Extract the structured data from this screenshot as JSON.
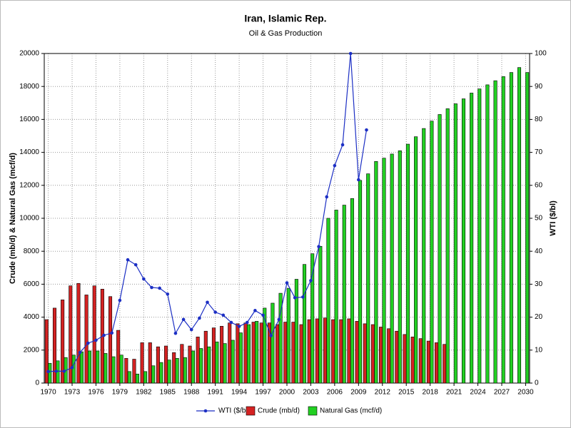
{
  "chart_data": {
    "type": "bar",
    "title": "Iran, Islamic Rep.",
    "subtitle": "Oil & Gas Production",
    "y_label": "Crude (mb/d) & Natural Gas (mcf/d)",
    "y2_label": "WTI ($/bl)",
    "categories": [
      "1970",
      null,
      null,
      "1973",
      null,
      null,
      "1976",
      null,
      null,
      "1979",
      null,
      null,
      "1982",
      null,
      null,
      "1985",
      null,
      null,
      "1988",
      null,
      null,
      "1991",
      null,
      null,
      "1994",
      null,
      null,
      "1997",
      null,
      null,
      "2000",
      null,
      null,
      "2003",
      null,
      null,
      "2006",
      null,
      null,
      "2009",
      null,
      null,
      "2012",
      null,
      null,
      "2015",
      null,
      null,
      "2018",
      null,
      null,
      "2021",
      null,
      null,
      "2024",
      null,
      null,
      "2027",
      null,
      null,
      "2030"
    ],
    "ylim": [
      0,
      20000
    ],
    "yticks": [
      0,
      2000,
      4000,
      6000,
      8000,
      10000,
      12000,
      14000,
      16000,
      18000,
      20000
    ],
    "y2lim": [
      0,
      100
    ],
    "y2ticks": [
      0,
      10,
      20,
      30,
      40,
      50,
      60,
      70,
      80,
      90,
      100
    ],
    "grid": true,
    "legend": "bottom",
    "series": [
      {
        "name": "WTI ($/bl)",
        "type": "line",
        "axis": "y2",
        "color": "#1c2fc4",
        "values": [
          3.5,
          3.6,
          3.6,
          4.7,
          9.3,
          12.1,
          13,
          14.5,
          15.2,
          25.1,
          37.4,
          35.9,
          31.6,
          29,
          28.8,
          27,
          15.1,
          19.3,
          16.2,
          19.7,
          24.5,
          21.5,
          20.6,
          18.4,
          17.2,
          18.4,
          22,
          20.6,
          14.4,
          19.3,
          30.4,
          25.9,
          26.1,
          31.1,
          41.4,
          56.5,
          66,
          72.3,
          100,
          61.7,
          76.8,
          null,
          null,
          null,
          null,
          null,
          null,
          null,
          null,
          null,
          null,
          null,
          null,
          null,
          null,
          null,
          null,
          null,
          null,
          null,
          null
        ]
      },
      {
        "name": "Crude (mb/d)",
        "type": "bar",
        "color": "#d42222",
        "values": [
          3850,
          4550,
          5050,
          5900,
          6050,
          5350,
          5900,
          5700,
          5250,
          3200,
          1500,
          1450,
          2450,
          2450,
          2200,
          2250,
          1850,
          2350,
          2250,
          2800,
          3150,
          3350,
          3450,
          3650,
          3600,
          3650,
          3700,
          3650,
          3650,
          3550,
          3700,
          3700,
          3550,
          3850,
          3900,
          3950,
          3850,
          3850,
          3900,
          3750,
          3600,
          3550,
          3400,
          3300,
          3150,
          2950,
          2800,
          2700,
          2550,
          2450,
          2350,
          null,
          null,
          null,
          null,
          null,
          null,
          null,
          null,
          null,
          null
        ]
      },
      {
        "name": "Natural Gas (mcf/d)",
        "type": "bar",
        "color": "#22d022",
        "values": [
          1200,
          1350,
          1550,
          1700,
          1900,
          1950,
          1950,
          1800,
          1600,
          1700,
          700,
          550,
          700,
          1050,
          1250,
          1400,
          1500,
          1550,
          1950,
          2100,
          2200,
          2500,
          2400,
          2600,
          3050,
          3550,
          3750,
          4550,
          4850,
          5450,
          5750,
          6300,
          7200,
          7850,
          8300,
          10000,
          10500,
          10800,
          11200,
          12300,
          12700,
          13450,
          13650,
          13900,
          14100,
          14500,
          14950,
          15450,
          15900,
          16300,
          16650,
          16950,
          17250,
          17600,
          17850,
          18100,
          18350,
          18600,
          18850,
          19150,
          18850
        ]
      }
    ]
  }
}
